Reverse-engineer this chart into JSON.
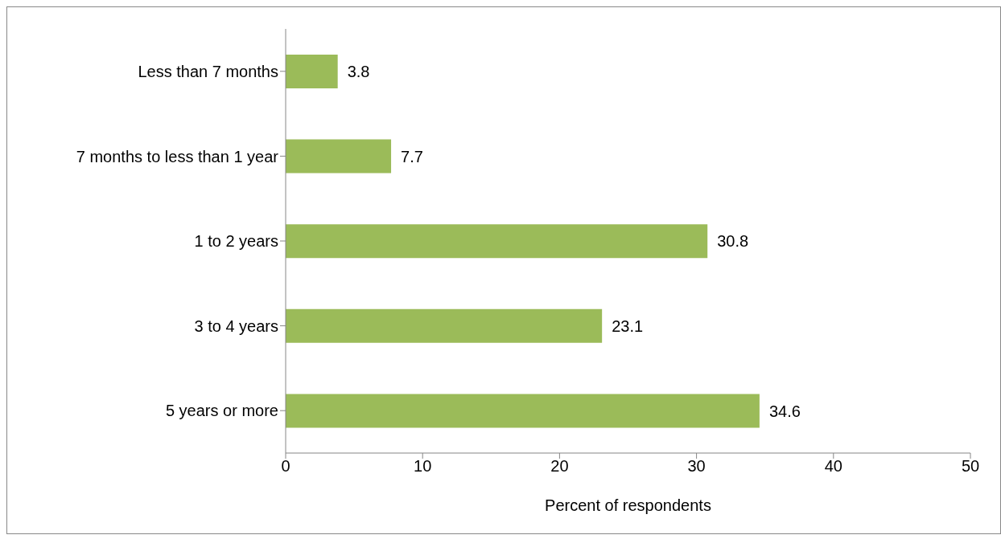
{
  "chart_data": {
    "type": "bar",
    "orientation": "horizontal",
    "categories": [
      "Less than 7 months",
      "7 months to less than 1 year",
      "1 to 2 years",
      "3 to 4 years",
      "5 years or more"
    ],
    "values": [
      3.8,
      7.7,
      30.8,
      23.1,
      34.6
    ],
    "color": "#9bbb59",
    "data_labels": true,
    "xlim": [
      0,
      50
    ],
    "xticks": [
      0,
      10,
      20,
      30,
      40,
      50
    ],
    "xlabel": "Percent of respondents",
    "grid": false,
    "legend": false
  }
}
